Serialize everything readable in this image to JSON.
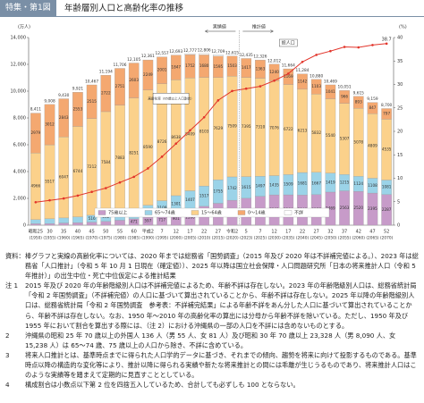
{
  "header": {
    "tag": "特集・第1図",
    "title": "年齢層別人口と高齢化率の推移"
  },
  "chart_data": {
    "type": "bar",
    "y_unit": "(万人)",
    "y2_unit": "(%)",
    "categories": [
      "(1950)",
      "(1955)",
      "(1960)",
      "(1965)",
      "(1970)",
      "(1975)",
      "(1980)",
      "(1985)",
      "(1990)",
      "(1995)",
      "(2000)",
      "(2005)",
      "(2010)",
      "(2015)",
      "(2020)",
      "(2023)",
      "(2025)",
      "(2030)",
      "(2035)",
      "(2040)",
      "(2045)",
      "(2050)",
      "(2055)",
      "(2060)",
      "(2065)",
      "(2070)"
    ],
    "era_labels": [
      "昭和25",
      "30",
      "35",
      "40",
      "45",
      "50",
      "55",
      "60",
      "平成2",
      "7",
      "12",
      "17",
      "22",
      "27",
      "令和2",
      "5",
      "7",
      "12",
      "17",
      "22",
      "27",
      "32",
      "37",
      "42",
      "47",
      "52"
    ],
    "ylim": [
      0,
      14000
    ],
    "yticks": [
      0,
      {
        "value": 2000,
        "label": "2,000"
      },
      {
        "value": 4000,
        "label": "4,000"
      },
      {
        "value": 6000,
        "label": "6,000"
      },
      {
        "value": 8000,
        "label": "8,000"
      },
      {
        "value": 10000,
        "label": "10,000"
      },
      {
        "value": 12000,
        "label": "12,000"
      },
      {
        "value": 14000,
        "label": "14,000"
      }
    ],
    "y2lim": [
      0,
      40
    ],
    "y2ticks": [
      0,
      5,
      10,
      15,
      20,
      25,
      30,
      35,
      40
    ],
    "series": [
      {
        "name": "75歳以上",
        "color": "#c79bc9",
        "values": [
          107,
          113,
          163,
          187,
          224,
          284,
          366,
          471,
          597,
          717,
          901,
          1160,
          1407,
          1632,
          1860,
          2008,
          2155,
          2261,
          2264,
          2248,
          2277,
          2469,
          2563,
          2520,
          2395,
          2287
        ]
      },
      {
        "name": "65〜74歳",
        "color": "#9bd3e8",
        "values": [
          309,
          366,
          378,
          437,
          516,
          602,
          699,
          773,
          892,
          1109,
          1301,
          1407,
          1517,
          1755,
          1742,
          1615,
          1497,
          1435,
          1509,
          1681,
          1667,
          1419,
          1215,
          1124,
          1108,
          1081
        ]
      },
      {
        "name": "15〜64歳",
        "color": "#fbd18b",
        "values": [
          4966,
          5517,
          6047,
          6744,
          7212,
          7584,
          7883,
          8251,
          8590,
          8726,
          8638,
          8409,
          8103,
          7629,
          7509,
          7395,
          7310,
          7076,
          6722,
          6213,
          5832,
          5540,
          5307,
          5078,
          4809,
          4535
        ]
      },
      {
        "name": "0〜14歳",
        "color": "#f4a870",
        "values": [
          2979,
          3012,
          2843,
          2553,
          2515,
          2722,
          2751,
          2603,
          2249,
          2001,
          1847,
          1752,
          1680,
          1595,
          1503,
          1417,
          1363,
          1240,
          1169,
          1142,
          1103,
          1041,
          966,
          893,
          847,
          797
        ]
      },
      {
        "name": "不詳",
        "color": "#ffffff",
        "values": [
          null,
          null,
          null,
          null,
          null,
          null,
          null,
          null,
          null,
          null,
          null,
          68,
          99,
          98,
          null,
          null,
          null,
          null,
          null,
          null,
          null,
          null,
          null,
          null,
          null,
          null
        ]
      },
      {
        "name": "高齢化率",
        "type": "line",
        "axis": "y2",
        "color": "#e2342a",
        "values": [
          4.9,
          5.3,
          5.7,
          6.3,
          7.1,
          7.9,
          9.1,
          10.3,
          12.1,
          14.6,
          17.4,
          20.2,
          23.0,
          26.6,
          28.6,
          29.1,
          29.6,
          30.8,
          32.3,
          34.8,
          36.3,
          37.1,
          38.0,
          37.9,
          38.4,
          38.7
        ]
      }
    ],
    "totals": [
      8411,
      9008,
      9430,
      9921,
      10467,
      11194,
      11706,
      12105,
      12361,
      12557,
      12693,
      12777,
      12806,
      12709,
      12615,
      12435,
      12326,
      12012,
      11664,
      11284,
      10880,
      10469,
      10051,
      9615,
      9159,
      8700
    ],
    "total_labels": [
      "8,411",
      "9,008",
      "9,430",
      "9,921",
      "10,467",
      "11,194",
      "11,706",
      "12,105",
      "12,361",
      "12,557",
      "12,693",
      "12,777",
      "12,806",
      "12,709",
      "12,615",
      "12,435",
      "12,326",
      "12,012",
      "11,664",
      "11,284",
      "10,880",
      "10,469",
      "10,051",
      "9,615",
      "9,159",
      "8,700"
    ],
    "annotations": {
      "actual": "実績値",
      "projected": "推計値",
      "total": "総人口",
      "rate": "高齢化率（65歳以上人口割合）"
    }
  },
  "notes": [
    {
      "key": "資料：",
      "text": "棒グラフと実線の高齢化率については、2020 年までは総務省「国勢調査」（2015 年及び 2020 年は不詳補完値による。）、2023 年は総務省「人口推計」（令和 5 年 10 月 1 日現在（確定値））、2025 年以降は国立社会保障・人口問題研究所「日本の将来推計人口（令和 5 年推計）」の出生中位・死亡中位仮定による推計結果"
    },
    {
      "key": "注 1",
      "text": "2015 年及び 2020 年の年齢階級別人口は不詳補完値によるため、年齢不詳は存在しない。2023 年の年齢階級別人口は、総務省統計局「令和 2 年国勢調査」（不詳補完値）の人口に基づいて算出されていることから、年齢不詳は存在しない。2025 年以降の年齢階級別人口は、総務省統計局「令和 2 年国勢調査　参考表：不詳補完結果」による年齢不詳をあん分した人口に基づいて算出されていることから、年齢不詳は存在しない。なお、1950 年〜2010 年の高齢化率の算出には分母から年齢不詳を除いている。ただし、1950 年及び 1955 年において割合を算出する際には、（注 2）における沖縄県の一部の人口を不詳には含めないものとする。"
    },
    {
      "key": "2",
      "text": "沖縄県の昭和 25 年 70 歳以上の外国人 136 人（男 55 人、女 81 人）及び昭和 30 年 70 歳以上 23,328 人（男 8,090 人、女 15,238 人）は 65〜74 歳、75 歳以上の人口から除き、不詳に含めている。"
    },
    {
      "key": "3",
      "text": "将来人口推計とは、基準時点までに得られた人口学的データに基づき、それまでの傾向、趨勢を将来に向けて投影するものである。基準時点以降の構造的な変化等により、推計以降に得られる実績や新たな将来推計との間には乖離が生じうるものであり、将来推計人口はこのような実績等を踏まえて定期的に見直すこととしている。"
    },
    {
      "key": "4",
      "text": "構成割合は小数点以下第 2 位を四捨五入しているため、合計しても必ずしも 100 とならない。"
    }
  ]
}
